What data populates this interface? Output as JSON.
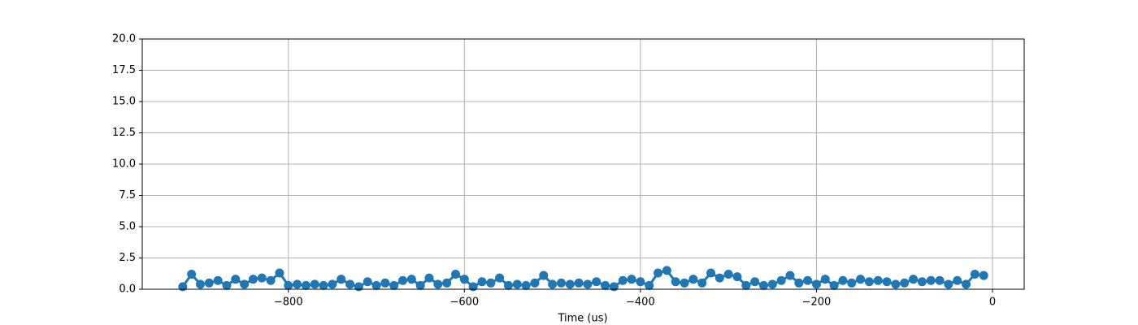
{
  "chart_data": {
    "type": "line",
    "xlabel": "Time (us)",
    "color": "#1f77b4",
    "grid": true,
    "x": [
      -920,
      -910,
      -900,
      -890,
      -880,
      -870,
      -860,
      -850,
      -840,
      -830,
      -820,
      -810,
      -800,
      -790,
      -780,
      -770,
      -760,
      -750,
      -740,
      -730,
      -720,
      -710,
      -700,
      -690,
      -680,
      -670,
      -660,
      -650,
      -640,
      -630,
      -620,
      -610,
      -600,
      -590,
      -580,
      -570,
      -560,
      -550,
      -540,
      -530,
      -520,
      -510,
      -500,
      -490,
      -480,
      -470,
      -460,
      -450,
      -440,
      -430,
      -420,
      -410,
      -400,
      -390,
      -380,
      -370,
      -360,
      -350,
      -340,
      -330,
      -320,
      -310,
      -300,
      -290,
      -280,
      -270,
      -260,
      -250,
      -240,
      -230,
      -220,
      -210,
      -200,
      -190,
      -180,
      -170,
      -160,
      -150,
      -140,
      -130,
      -120,
      -110,
      -100,
      -90,
      -80,
      -70,
      -60,
      -50,
      -40,
      -30,
      -20,
      -10
    ],
    "values": [
      0.2,
      1.2,
      0.4,
      0.5,
      0.7,
      0.3,
      0.8,
      0.4,
      0.8,
      0.9,
      0.7,
      1.3,
      0.3,
      0.4,
      0.3,
      0.4,
      0.3,
      0.4,
      0.8,
      0.4,
      0.2,
      0.6,
      0.3,
      0.5,
      0.3,
      0.7,
      0.8,
      0.3,
      0.9,
      0.4,
      0.5,
      1.2,
      0.8,
      0.2,
      0.6,
      0.5,
      0.9,
      0.3,
      0.4,
      0.3,
      0.5,
      1.1,
      0.4,
      0.5,
      0.4,
      0.5,
      0.4,
      0.6,
      0.3,
      0.2,
      0.7,
      0.8,
      0.6,
      0.3,
      1.3,
      1.5,
      0.6,
      0.5,
      0.8,
      0.5,
      1.3,
      0.9,
      1.2,
      1.0,
      0.3,
      0.6,
      0.3,
      0.4,
      0.7,
      1.1,
      0.5,
      0.7,
      0.4,
      0.8,
      0.3,
      0.7,
      0.5,
      0.8,
      0.6,
      0.7,
      0.6,
      0.4,
      0.5,
      0.8,
      0.6,
      0.7,
      0.7,
      0.4,
      0.7,
      0.4,
      1.2,
      1.1
    ],
    "xlim": [
      -966,
      36
    ],
    "xticks": [
      {
        "value": -800,
        "label": "−800"
      },
      {
        "value": -600,
        "label": "−600"
      },
      {
        "value": -400,
        "label": "−400"
      },
      {
        "value": -200,
        "label": "−200"
      },
      0
    ],
    "ylim": [
      0,
      20
    ],
    "yticks": [
      {
        "value": 0,
        "label": "0.0"
      },
      {
        "value": 2.5,
        "label": "2.5"
      },
      {
        "value": 5,
        "label": "5.0"
      },
      {
        "value": 7.5,
        "label": "7.5"
      },
      {
        "value": 10,
        "label": "10.0"
      },
      {
        "value": 12.5,
        "label": "12.5"
      },
      {
        "value": 15,
        "label": "15.0"
      },
      {
        "value": 17.5,
        "label": "17.5"
      },
      {
        "value": 20,
        "label": "20.0"
      }
    ]
  }
}
